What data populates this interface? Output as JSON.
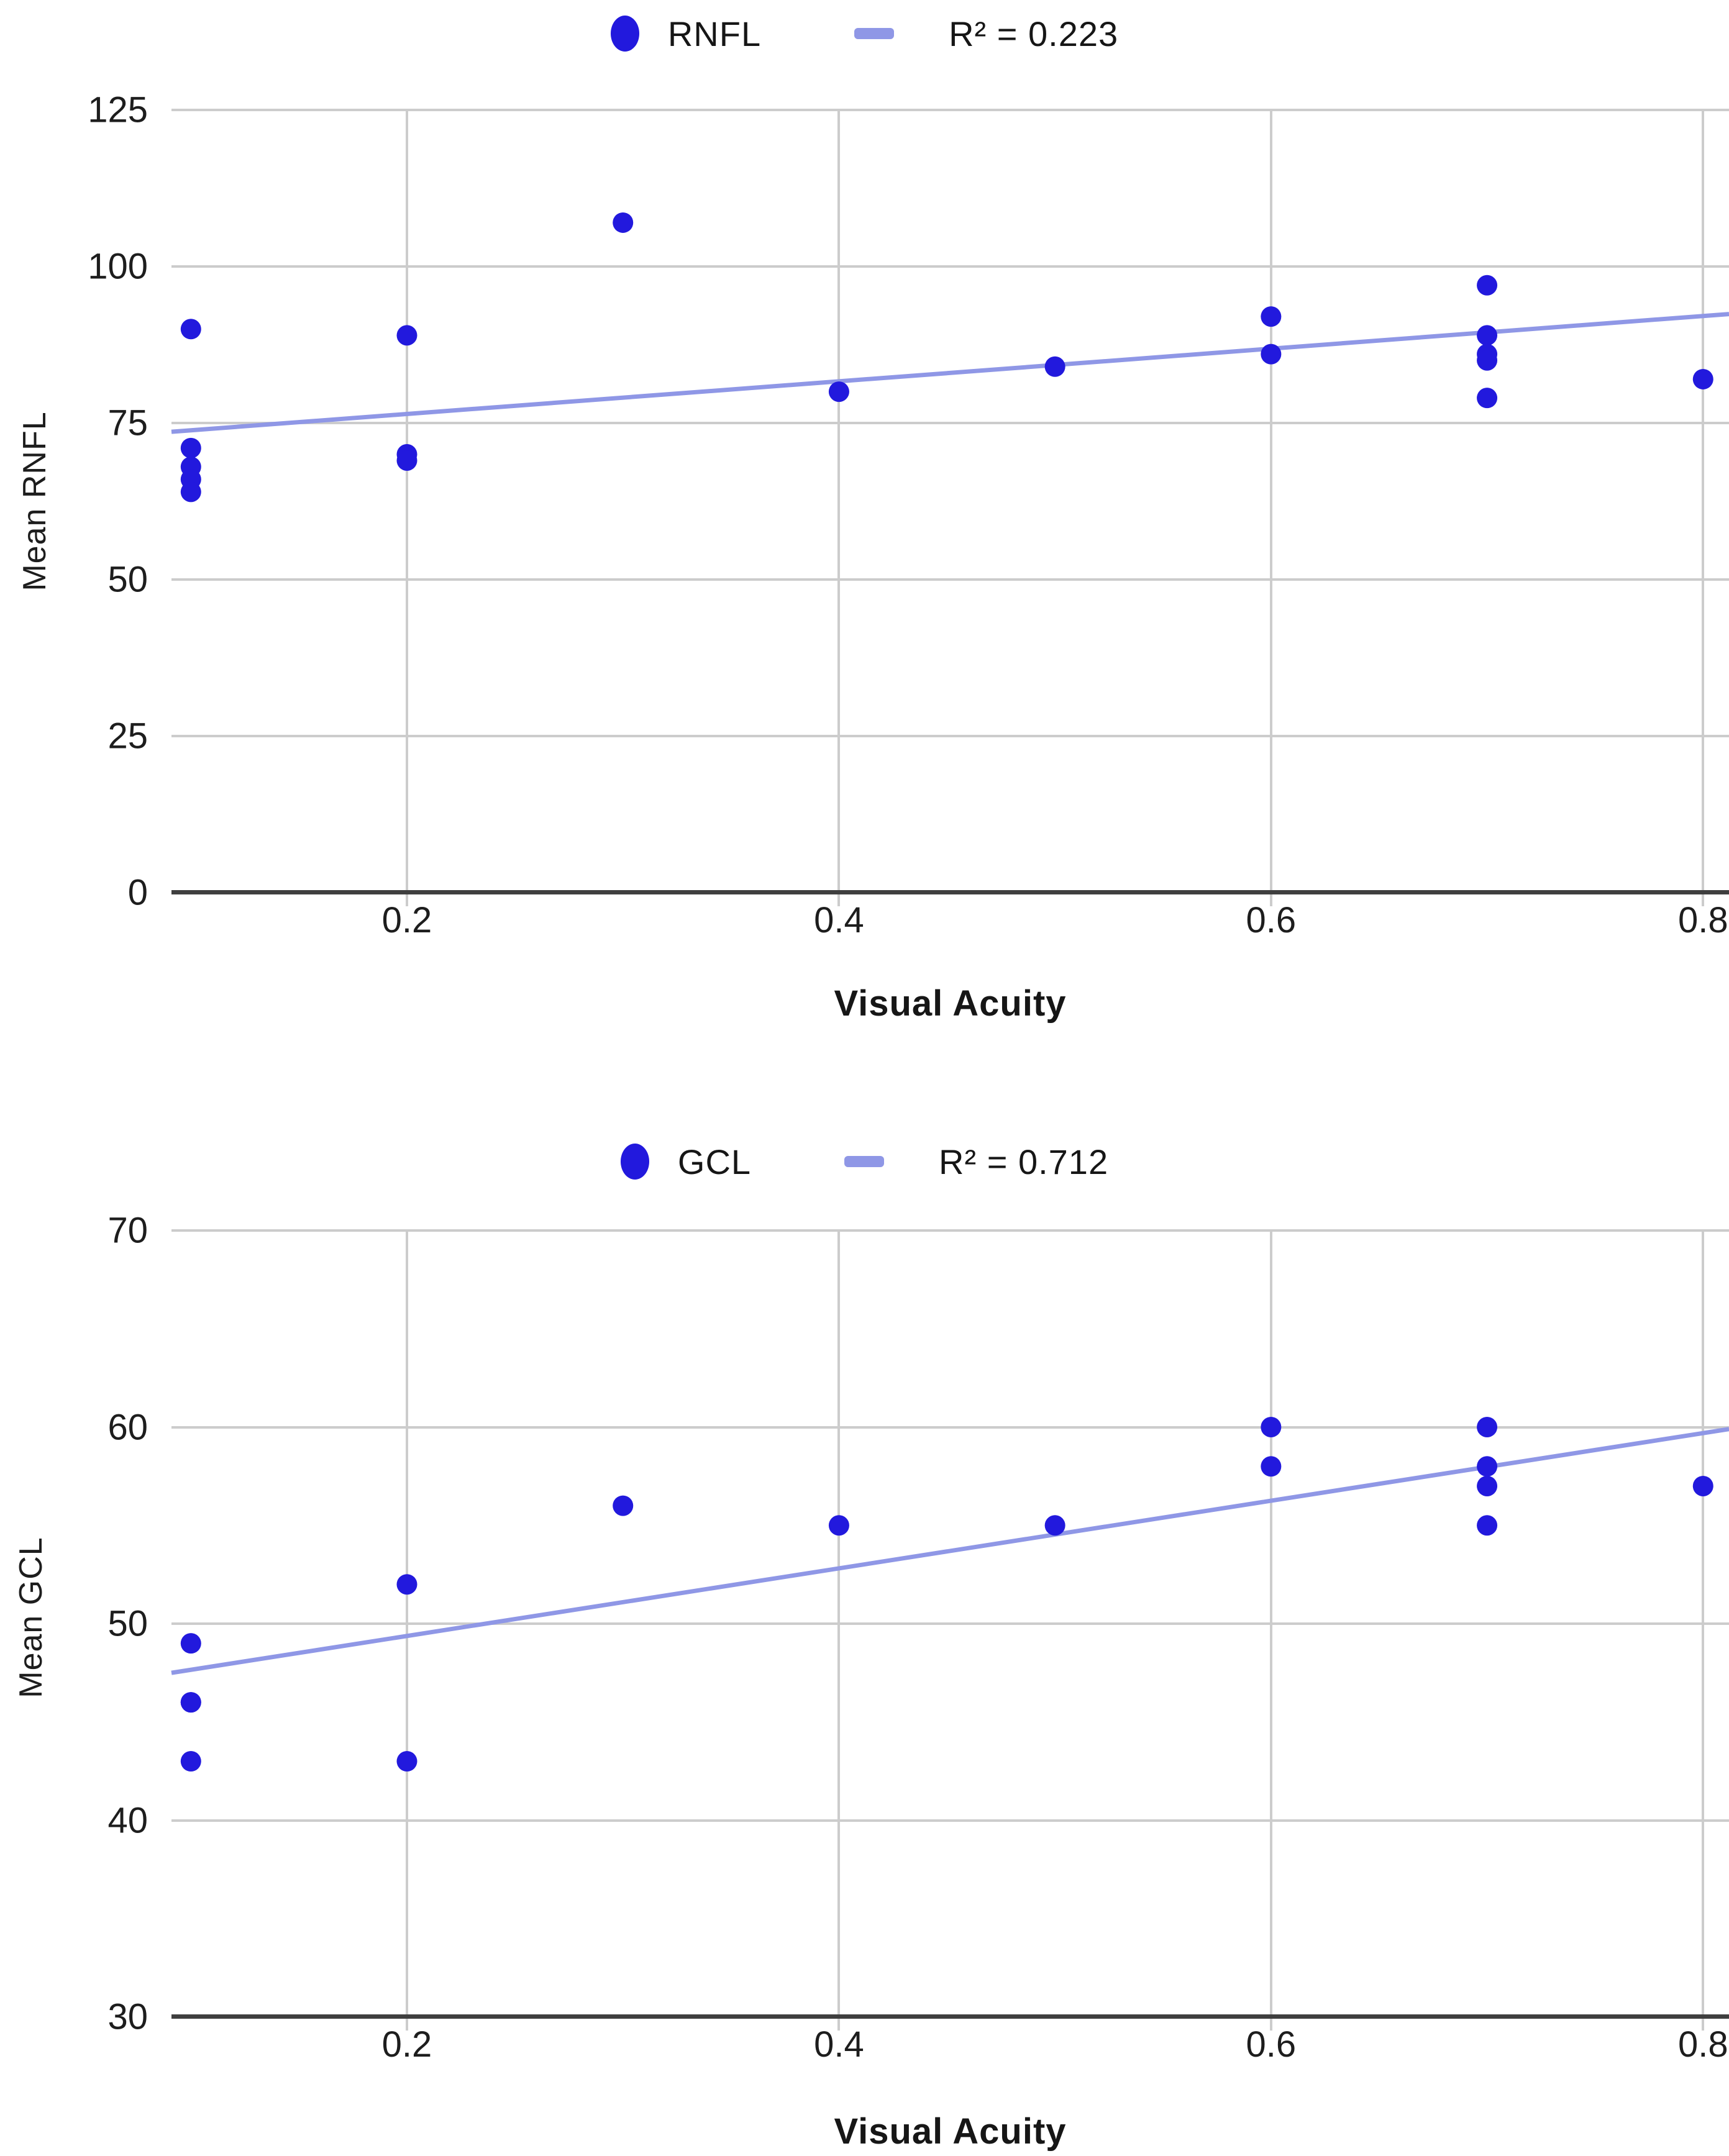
{
  "page_background": "#ffffff",
  "colors": {
    "point": "#2219dd",
    "trendline": "#8f97e6",
    "gridline": "#cccccc",
    "axis_line": "#3f3f3f",
    "text": "#161616"
  },
  "chart_data": [
    {
      "type": "scatter",
      "title": "",
      "xlabel": "Visual Acuity",
      "ylabel": "Mean RNFL",
      "xlim": [
        0.091,
        0.812
      ],
      "ylim": [
        0,
        125
      ],
      "xticks": [
        0.2,
        0.4,
        0.6,
        0.8
      ],
      "yticks": [
        0,
        25,
        50,
        75,
        100,
        125
      ],
      "grid": true,
      "legend_position": "top",
      "series": [
        {
          "name": "RNFL",
          "points": [
            [
              0.1,
              90
            ],
            [
              0.1,
              71
            ],
            [
              0.1,
              68
            ],
            [
              0.1,
              66
            ],
            [
              0.1,
              64
            ],
            [
              0.2,
              89
            ],
            [
              0.2,
              70
            ],
            [
              0.2,
              69
            ],
            [
              0.3,
              107
            ],
            [
              0.4,
              80
            ],
            [
              0.5,
              84
            ],
            [
              0.6,
              92
            ],
            [
              0.6,
              86
            ],
            [
              0.7,
              97
            ],
            [
              0.7,
              89
            ],
            [
              0.7,
              86
            ],
            [
              0.7,
              85
            ],
            [
              0.7,
              79
            ],
            [
              0.8,
              82
            ]
          ]
        }
      ],
      "trendline": {
        "label": "R² = 0.223",
        "r_squared": 0.223,
        "x1": 0.091,
        "y1": 73.6,
        "x2": 0.812,
        "y2": 92.4
      }
    },
    {
      "type": "scatter",
      "title": "",
      "xlabel": "Visual Acuity",
      "ylabel": "Mean GCL",
      "xlim": [
        0.091,
        0.812
      ],
      "ylim": [
        30,
        70
      ],
      "xticks": [
        0.2,
        0.4,
        0.6,
        0.8
      ],
      "yticks": [
        30,
        40,
        50,
        60,
        70
      ],
      "grid": true,
      "legend_position": "top",
      "series": [
        {
          "name": "GCL",
          "points": [
            [
              0.1,
              49
            ],
            [
              0.1,
              46
            ],
            [
              0.1,
              46
            ],
            [
              0.1,
              43
            ],
            [
              0.2,
              52
            ],
            [
              0.2,
              43
            ],
            [
              0.3,
              56
            ],
            [
              0.4,
              55
            ],
            [
              0.5,
              55
            ],
            [
              0.6,
              60
            ],
            [
              0.6,
              58
            ],
            [
              0.7,
              60
            ],
            [
              0.7,
              58
            ],
            [
              0.7,
              57
            ],
            [
              0.7,
              55
            ],
            [
              0.8,
              57
            ]
          ]
        }
      ],
      "trendline": {
        "label": "R² = 0.712",
        "r_squared": 0.712,
        "x1": 0.091,
        "y1": 47.5,
        "x2": 0.812,
        "y2": 59.9
      }
    }
  ]
}
